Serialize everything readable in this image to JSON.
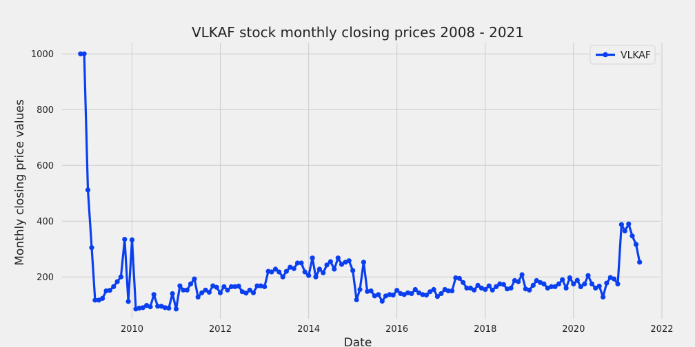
{
  "chart_data": {
    "type": "line",
    "title": "VLKAF stock monthly closing prices 2008 - 2021",
    "xlabel": "Date",
    "ylabel": "Monthly closing price values",
    "xlim": [
      "2008-06-01",
      "2021-12-15"
    ],
    "ylim": [
      50,
      1040
    ],
    "x_ticks": [
      "2010",
      "2012",
      "2014",
      "2016",
      "2018",
      "2020",
      "2022"
    ],
    "y_ticks": [
      200,
      400,
      600,
      800,
      1000
    ],
    "grid": true,
    "legend_position": "top-right",
    "line_color": "#0a3ff0",
    "series": [
      {
        "name": "VLKAF",
        "x": [
          "2008-11-01",
          "2008-12-01",
          "2009-01-01",
          "2009-02-01",
          "2009-03-01",
          "2009-04-01",
          "2009-05-01",
          "2009-06-01",
          "2009-07-01",
          "2009-08-01",
          "2009-09-01",
          "2009-10-01",
          "2009-11-01",
          "2009-12-01",
          "2010-01-01",
          "2010-02-01",
          "2010-03-01",
          "2010-04-01",
          "2010-05-01",
          "2010-06-01",
          "2010-07-01",
          "2010-08-01",
          "2010-09-01",
          "2010-10-01",
          "2010-11-01",
          "2010-12-01",
          "2011-01-01",
          "2011-02-01",
          "2011-03-01",
          "2011-04-01",
          "2011-05-01",
          "2011-06-01",
          "2011-07-01",
          "2011-08-01",
          "2011-09-01",
          "2011-10-01",
          "2011-11-01",
          "2011-12-01",
          "2012-01-01",
          "2012-02-01",
          "2012-03-01",
          "2012-04-01",
          "2012-05-01",
          "2012-06-01",
          "2012-07-01",
          "2012-08-01",
          "2012-09-01",
          "2012-10-01",
          "2012-11-01",
          "2012-12-01",
          "2013-01-01",
          "2013-02-01",
          "2013-03-01",
          "2013-04-01",
          "2013-05-01",
          "2013-06-01",
          "2013-07-01",
          "2013-08-01",
          "2013-09-01",
          "2013-10-01",
          "2013-11-01",
          "2013-12-01",
          "2014-01-01",
          "2014-02-01",
          "2014-03-01",
          "2014-04-01",
          "2014-05-01",
          "2014-06-01",
          "2014-07-01",
          "2014-08-01",
          "2014-09-01",
          "2014-10-01",
          "2014-11-01",
          "2014-12-01",
          "2015-01-01",
          "2015-02-01",
          "2015-03-01",
          "2015-04-01",
          "2015-05-01",
          "2015-06-01",
          "2015-07-01",
          "2015-08-01",
          "2015-09-01",
          "2015-10-01",
          "2015-11-01",
          "2015-12-01",
          "2016-01-01",
          "2016-02-01",
          "2016-03-01",
          "2016-04-01",
          "2016-05-01",
          "2016-06-01",
          "2016-07-01",
          "2016-08-01",
          "2016-09-01",
          "2016-10-01",
          "2016-11-01",
          "2016-12-01",
          "2017-01-01",
          "2017-02-01",
          "2017-03-01",
          "2017-04-01",
          "2017-05-01",
          "2017-06-01",
          "2017-07-01",
          "2017-08-01",
          "2017-09-01",
          "2017-10-01",
          "2017-11-01",
          "2017-12-01",
          "2018-01-01",
          "2018-02-01",
          "2018-03-01",
          "2018-04-01",
          "2018-05-01",
          "2018-06-01",
          "2018-07-01",
          "2018-08-01",
          "2018-09-01",
          "2018-10-01",
          "2018-11-01",
          "2018-12-01",
          "2019-01-01",
          "2019-02-01",
          "2019-03-01",
          "2019-04-01",
          "2019-05-01",
          "2019-06-01",
          "2019-07-01",
          "2019-08-01",
          "2019-09-01",
          "2019-10-01",
          "2019-11-01",
          "2019-12-01",
          "2020-01-01",
          "2020-02-01",
          "2020-03-01",
          "2020-04-01",
          "2020-05-01",
          "2020-06-01",
          "2020-07-01",
          "2020-08-01",
          "2020-09-01",
          "2020-10-01",
          "2020-11-01",
          "2020-12-01",
          "2021-01-01",
          "2021-02-01",
          "2021-03-01",
          "2021-04-01",
          "2021-05-01",
          "2021-06-01",
          "2021-07-01"
        ],
        "y": [
          1000,
          1000,
          512,
          305,
          117,
          117,
          123,
          150,
          152,
          165,
          183,
          200,
          335,
          112,
          333,
          85,
          88,
          90,
          98,
          93,
          137,
          95,
          95,
          90,
          88,
          140,
          85,
          168,
          153,
          153,
          175,
          193,
          128,
          143,
          153,
          145,
          168,
          163,
          143,
          165,
          153,
          165,
          165,
          167,
          147,
          142,
          153,
          143,
          168,
          168,
          165,
          220,
          218,
          228,
          218,
          200,
          220,
          235,
          230,
          250,
          250,
          218,
          205,
          268,
          200,
          228,
          215,
          243,
          255,
          228,
          268,
          245,
          253,
          258,
          223,
          118,
          155,
          253,
          148,
          150,
          132,
          137,
          113,
          132,
          137,
          135,
          152,
          140,
          137,
          143,
          140,
          155,
          143,
          137,
          135,
          147,
          155,
          130,
          140,
          155,
          150,
          150,
          197,
          195,
          180,
          160,
          160,
          153,
          170,
          160,
          155,
          168,
          153,
          165,
          175,
          173,
          157,
          160,
          187,
          183,
          208,
          157,
          153,
          170,
          187,
          180,
          175,
          160,
          165,
          165,
          175,
          190,
          160,
          197,
          175,
          188,
          165,
          175,
          205,
          175,
          160,
          167,
          128,
          178,
          198,
          193,
          175,
          388,
          365,
          390,
          347,
          317,
          253
        ]
      }
    ]
  }
}
